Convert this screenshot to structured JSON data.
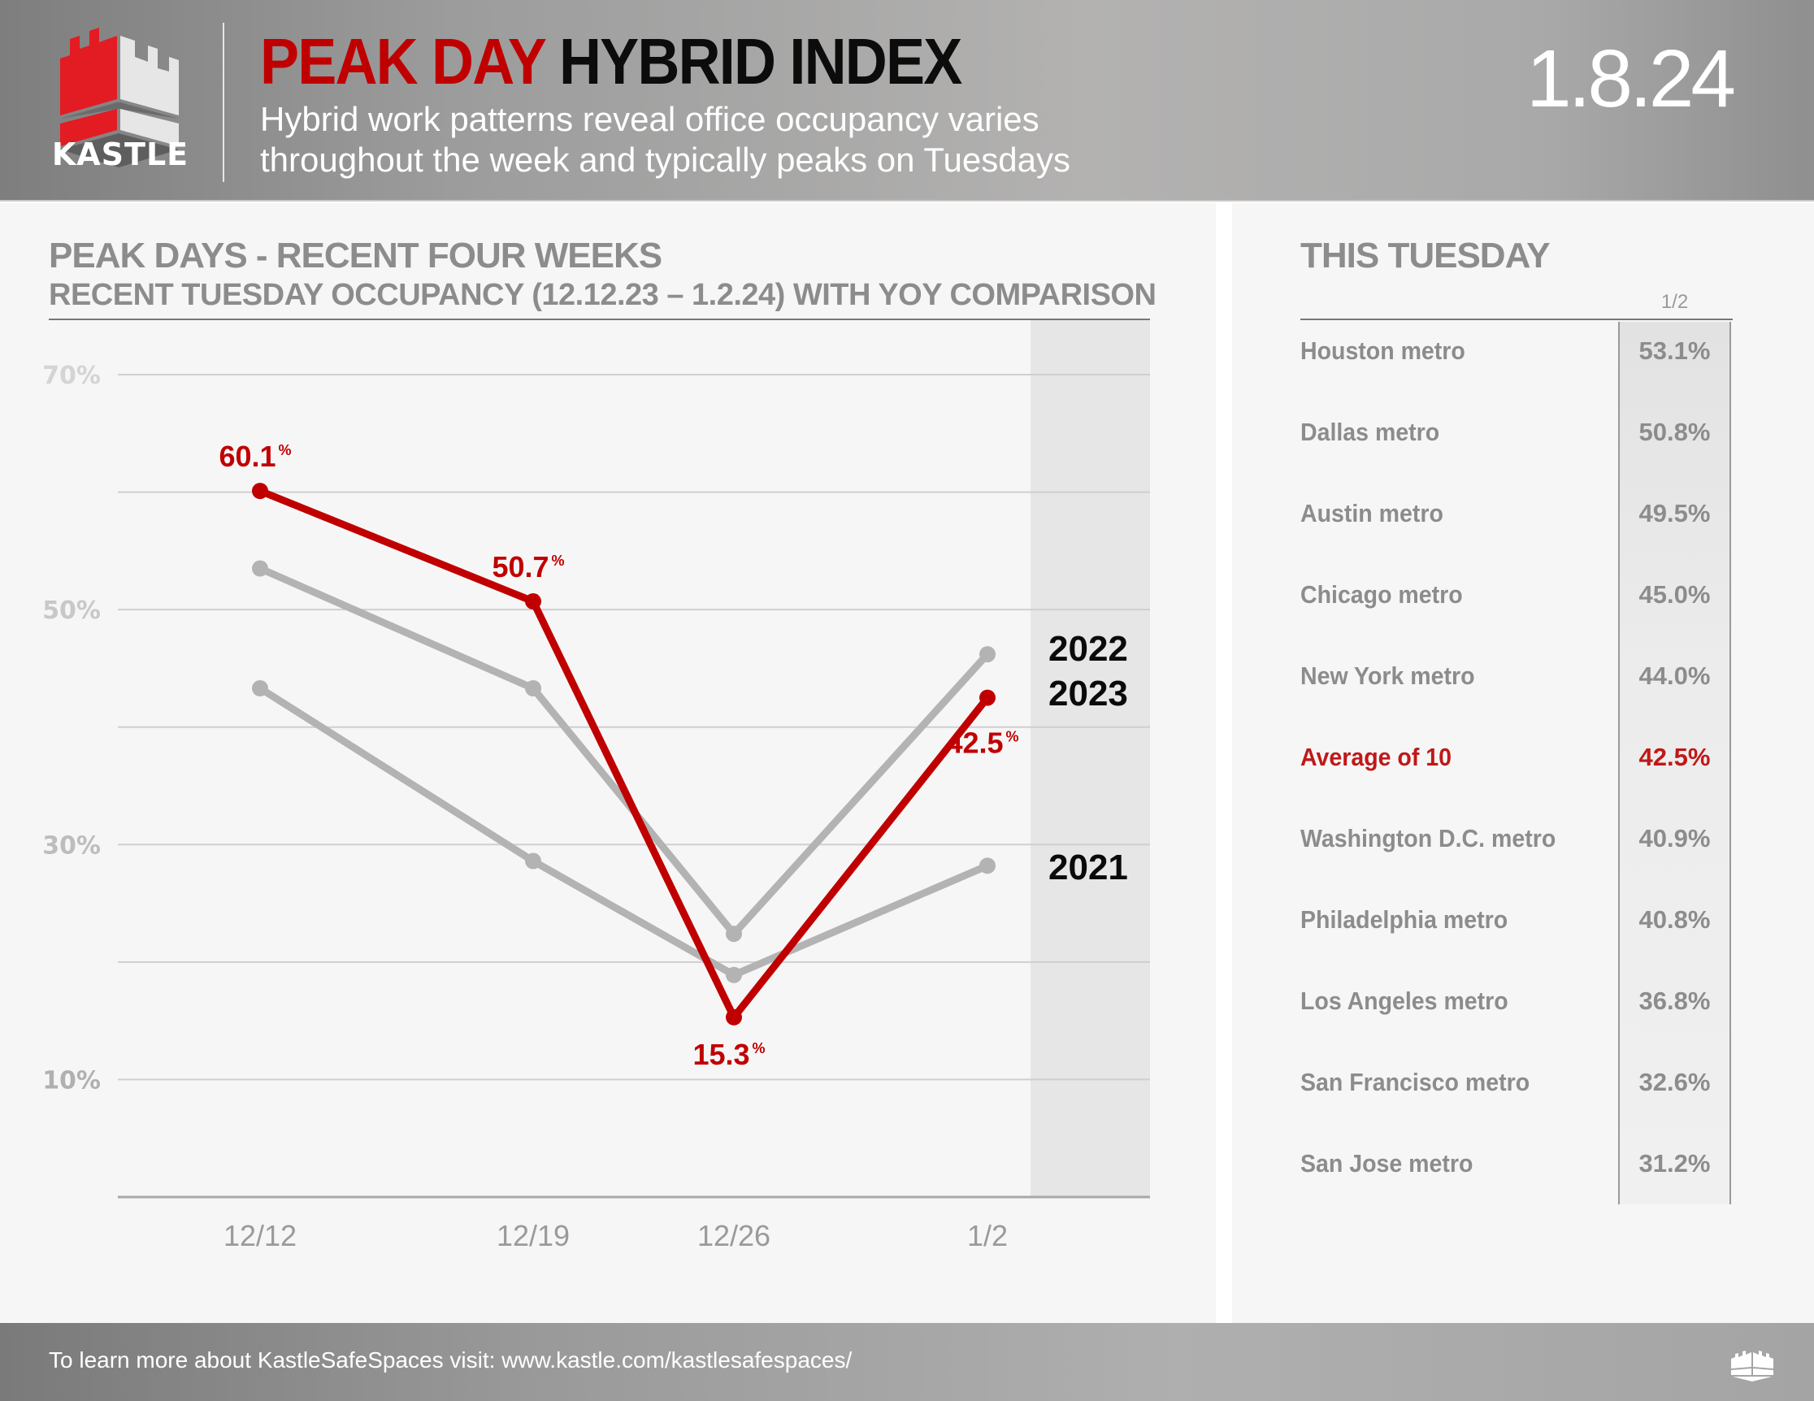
{
  "header": {
    "brand": "KASTLE",
    "title_red": "PEAK DAY",
    "title_black": "HYBRID INDEX",
    "subtitle_line1": "Hybrid work patterns reveal office occupancy varies",
    "subtitle_line2": "throughout the week and typically peaks on Tuesdays",
    "date": "1.8.24",
    "colors": {
      "brand_red": "#c00000",
      "title_black": "#0c0c0c"
    }
  },
  "left_panel": {
    "title": "PEAK DAYS - RECENT FOUR WEEKS",
    "subtitle": "RECENT TUESDAY OCCUPANCY (12.12.23 – 1.2.24) WITH YOY COMPARISON"
  },
  "chart_data": {
    "type": "line",
    "title": "PEAK DAYS - RECENT FOUR WEEKS",
    "subtitle": "RECENT TUESDAY OCCUPANCY (12.12.23 – 1.2.24) WITH YOY COMPARISON",
    "xlabel": "",
    "ylabel": "",
    "categories": [
      "12/12",
      "12/19",
      "12/26",
      "1/2"
    ],
    "ylim": [
      0,
      70
    ],
    "yticks": [
      10,
      30,
      50,
      70
    ],
    "ytick_labels": [
      "10%",
      "30%",
      "50%",
      "70%"
    ],
    "gridlines": [
      0,
      10,
      20,
      30,
      40,
      50,
      60,
      70
    ],
    "grid": true,
    "legend_placement": "right (labels at line ends)",
    "series": [
      {
        "name": "2021",
        "color": "#b3b3b3",
        "values": [
          43.3,
          28.6,
          18.9,
          28.2
        ],
        "show_labels": false
      },
      {
        "name": "2022",
        "color": "#b3b3b3",
        "values": [
          53.5,
          43.3,
          22.4,
          46.2
        ],
        "show_labels": false
      },
      {
        "name": "2023",
        "color": "#c00000",
        "values": [
          60.1,
          50.7,
          15.3,
          42.5
        ],
        "show_labels": true,
        "data_labels": [
          "60.1",
          "50.7",
          "15.3",
          "42.5"
        ],
        "label_suffix": "%"
      }
    ],
    "series_labels": [
      {
        "text": "2022",
        "series": "2022"
      },
      {
        "text": "2023",
        "series": "2023"
      },
      {
        "text": "2021",
        "series": "2021"
      }
    ],
    "highlight_band_category": "1/2"
  },
  "right_panel": {
    "title": "THIS TUESDAY",
    "column_header": "1/2",
    "rows": [
      {
        "name": "Houston metro",
        "value": "53.1%",
        "highlight": false
      },
      {
        "name": "Dallas metro",
        "value": "50.8%",
        "highlight": false
      },
      {
        "name": "Austin metro",
        "value": "49.5%",
        "highlight": false
      },
      {
        "name": "Chicago metro",
        "value": "45.0%",
        "highlight": false
      },
      {
        "name": "New York metro",
        "value": "44.0%",
        "highlight": false
      },
      {
        "name": "Average of 10",
        "value": "42.5%",
        "highlight": true
      },
      {
        "name": "Washington D.C. metro",
        "value": "40.9%",
        "highlight": false
      },
      {
        "name": "Philadelphia metro",
        "value": "40.8%",
        "highlight": false
      },
      {
        "name": "Los Angeles metro",
        "value": "36.8%",
        "highlight": false
      },
      {
        "name": "San Francisco metro",
        "value": "32.6%",
        "highlight": false
      },
      {
        "name": "San Jose metro",
        "value": "31.2%",
        "highlight": false
      }
    ]
  },
  "footer": {
    "text": "To learn more about KastleSafeSpaces visit: www.kastle.com/kastlesafespaces/",
    "icon": "kastle-tower-icon"
  }
}
